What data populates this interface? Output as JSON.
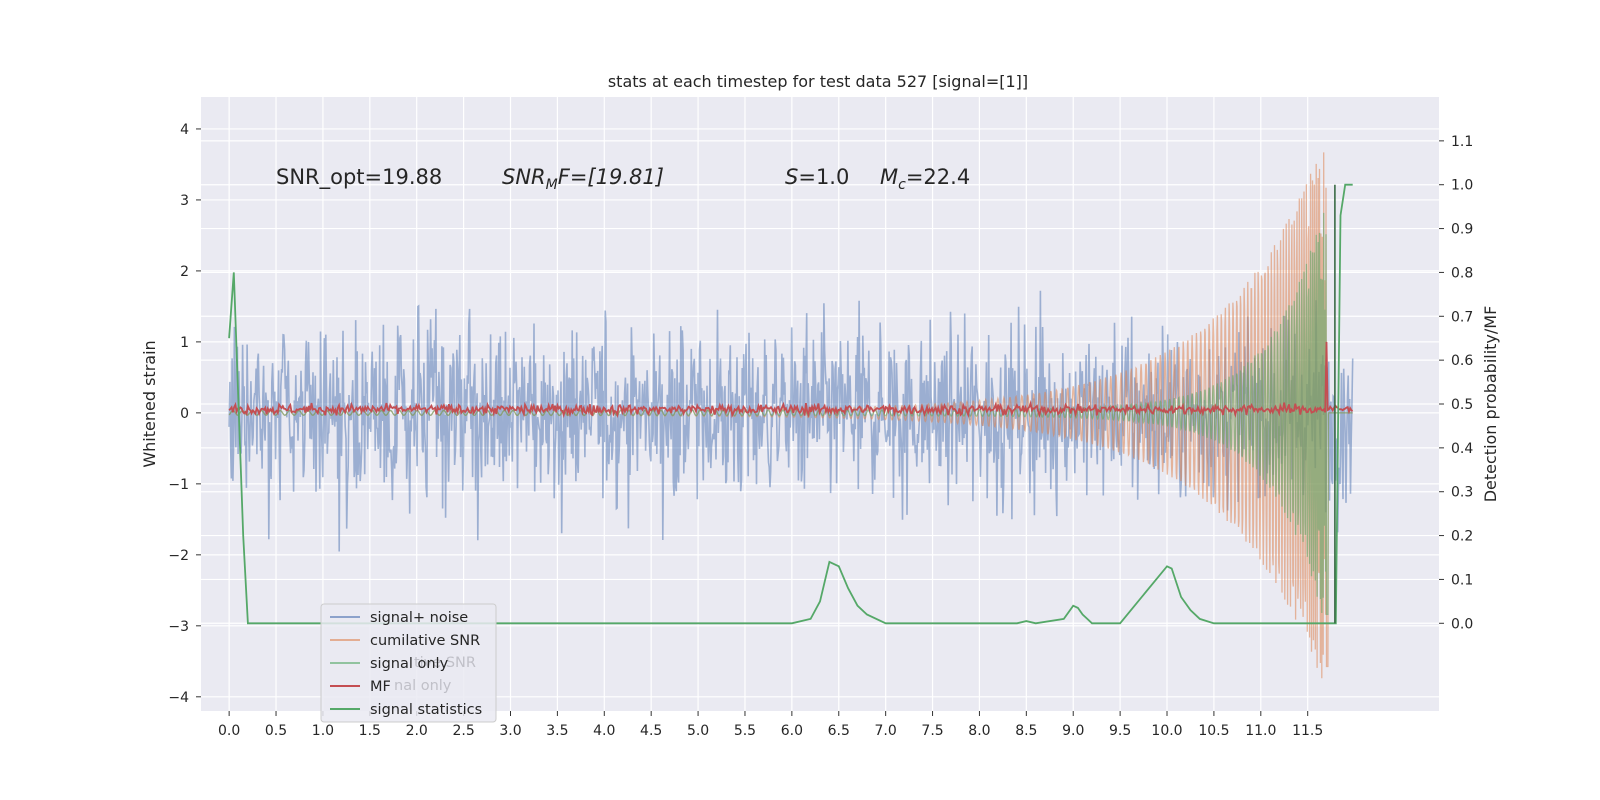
{
  "chart_data": {
    "type": "line",
    "title": "stats at each timestep for test data 527 [signal=[1]]",
    "ylabel": "Whitened strain",
    "ylabel_right": "Detection probability/MF",
    "xlabel": "",
    "xlim": [
      -0.3,
      12.9
    ],
    "ylim": [
      -4.2,
      4.45
    ],
    "ylim_right": [
      -0.2,
      1.2
    ],
    "x_ticks": [
      "0.0",
      "0.5",
      "1.0",
      "1.5",
      "2.0",
      "2.5",
      "3.0",
      "3.5",
      "4.0",
      "4.5",
      "5.0",
      "5.5",
      "6.0",
      "6.5",
      "7.0",
      "7.5",
      "8.0",
      "8.5",
      "9.0",
      "9.5",
      "10.0",
      "10.5",
      "11.0",
      "11.5"
    ],
    "y_ticks": [
      "4",
      "3",
      "2",
      "1",
      "0",
      "−1",
      "−2",
      "−3",
      "−4"
    ],
    "y_ticks_right": [
      "1.1",
      "1.0",
      "0.9",
      "0.8",
      "0.7",
      "0.6",
      "0.5",
      "0.4",
      "0.3",
      "0.2",
      "0.1",
      "0.0"
    ],
    "grid": true,
    "legend_position": "lower-left",
    "annotations": {
      "snr_opt": "SNR_opt=19.88",
      "snr_mf_name": "SNR",
      "snr_mf_sub": "M",
      "snr_mf_rest": "F=[19.81]",
      "s_name": "S",
      "s_rest": "=1.0",
      "mc_name": "M",
      "mc_sub": "c",
      "mc_rest": "=22.4"
    },
    "series": [
      {
        "name": "signal+ noise",
        "color": "#4c72b0",
        "axis": "left",
        "x_range": [
          0.0,
          11.98
        ],
        "envelope_std": 0.62,
        "extreme_range": [
          -3.3,
          4.1
        ]
      },
      {
        "name": "cumilative SNR",
        "color": "#dd8452",
        "axis": "left",
        "x_range": [
          0.0,
          11.98
        ],
        "peak_x": 11.65,
        "peak_y": 3.9,
        "min_y": -3.9
      },
      {
        "name": "signal only",
        "color": "#55a868",
        "axis": "left",
        "x_range": [
          0.0,
          11.98
        ],
        "peak_x": 11.7,
        "peak_y": 3.1
      },
      {
        "name": "MF",
        "color": "#c44e52",
        "axis": "left",
        "x_range": [
          0.0,
          11.98
        ],
        "baseline": 0.05,
        "spike_x": 11.7,
        "spike_y": 1.0
      },
      {
        "name": "signal statistics",
        "color": "#55a868",
        "axis": "right",
        "x": [
          0.0,
          0.05,
          0.1,
          0.15,
          0.2,
          0.3,
          1.0,
          2.0,
          2.5,
          3.0,
          4.0,
          5.0,
          6.0,
          6.2,
          6.3,
          6.4,
          6.5,
          6.6,
          6.7,
          6.8,
          7.0,
          8.0,
          8.4,
          8.5,
          8.6,
          8.9,
          9.0,
          9.05,
          9.1,
          9.15,
          9.2,
          9.3,
          9.5,
          10.0,
          10.05,
          10.15,
          10.25,
          10.35,
          10.5,
          10.7,
          11.0,
          11.5,
          11.7,
          11.75,
          11.8,
          11.85,
          11.9,
          11.95,
          11.98
        ],
        "y": [
          0.65,
          0.8,
          0.5,
          0.2,
          0.0,
          0.0,
          0.0,
          0.0,
          0.0,
          0.0,
          0.0,
          0.0,
          0.0,
          0.01,
          0.05,
          0.14,
          0.13,
          0.08,
          0.04,
          0.02,
          0.0,
          0.0,
          0.0,
          0.005,
          0.0,
          0.01,
          0.04,
          0.035,
          0.02,
          0.01,
          0.0,
          0.0,
          0.0,
          0.13,
          0.125,
          0.06,
          0.03,
          0.01,
          0.0,
          0.0,
          0.0,
          0.0,
          0.0,
          0.0,
          0.0,
          0.93,
          1.0,
          1.0,
          1.0
        ]
      }
    ]
  }
}
